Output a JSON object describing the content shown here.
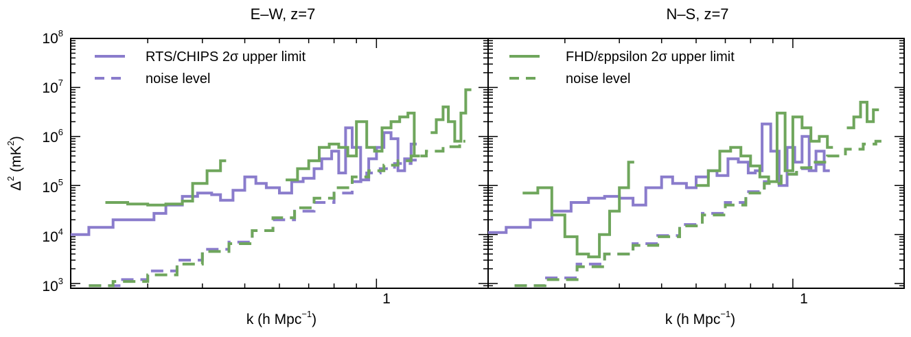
{
  "chart_data": [
    {
      "type": "line",
      "title": "E–W, z=7",
      "xlabel": "k (h Mpc",
      "xlabel_sup": "−1",
      "xlabel_close": ")",
      "ylabel": "Δ",
      "ylabel_sup": "2",
      "ylabel_mid": " (mK",
      "ylabel_sup2": "2",
      "ylabel_close": ")",
      "x_scale": "log",
      "y_scale": "log",
      "xlim": [
        0.2,
        1.8
      ],
      "ylim": [
        800,
        100000000
      ],
      "x_tick_labels": [
        {
          "value": 1,
          "label": "1"
        }
      ],
      "y_tick_labels": [
        {
          "value": 1000,
          "base": "10",
          "exp": "3"
        },
        {
          "value": 10000,
          "base": "10",
          "exp": "4"
        },
        {
          "value": 100000,
          "base": "10",
          "exp": "5"
        },
        {
          "value": 1000000,
          "base": "10",
          "exp": "6"
        },
        {
          "value": 10000000,
          "base": "10",
          "exp": "7"
        },
        {
          "value": 100000000,
          "base": "10",
          "exp": "8"
        }
      ],
      "legend": {
        "placement": "top-left",
        "entries": [
          {
            "label": "RTS/CHIPS 2σ upper limit",
            "style": "solid",
            "color": "#8a7ccc"
          },
          {
            "label": "noise level",
            "style": "dashed",
            "color": "#8a7ccc"
          }
        ]
      },
      "series": [
        {
          "name": "RTS/CHIPS 2σ upper limit",
          "color": "#8a7ccc",
          "style": "solid",
          "points": [
            [
              0.2,
              10000
            ],
            [
              0.22,
              14000
            ],
            [
              0.25,
              20000
            ],
            [
              0.28,
              20000
            ],
            [
              0.31,
              27000
            ],
            [
              0.33,
              40000
            ],
            [
              0.36,
              60000
            ],
            [
              0.39,
              70000
            ],
            [
              0.42,
              65000
            ],
            [
              0.44,
              50000
            ],
            [
              0.47,
              80000
            ],
            [
              0.5,
              150000
            ],
            [
              0.53,
              110000
            ],
            [
              0.56,
              90000
            ],
            [
              0.6,
              70000
            ],
            [
              0.64,
              120000
            ],
            [
              0.68,
              140000
            ],
            [
              0.72,
              220000
            ],
            [
              0.75,
              350000
            ],
            [
              0.79,
              500000
            ],
            [
              0.82,
              180000
            ],
            [
              0.85,
              1500000
            ],
            [
              0.88,
              600000
            ],
            [
              0.92,
              130000
            ],
            [
              0.96,
              350000
            ],
            [
              1.0,
              600000
            ],
            [
              1.04,
              1200000
            ],
            [
              1.08,
              900000
            ],
            [
              1.12,
              200000
            ],
            [
              1.16,
              350000
            ],
            [
              1.2,
              700000
            ]
          ]
        },
        {
          "name": "RTS/CHIPS noise level",
          "color": "#8a7ccc",
          "style": "dashed",
          "points": [
            [
              0.22,
              900
            ],
            [
              0.26,
              1200
            ],
            [
              0.3,
              1800
            ],
            [
              0.35,
              3000
            ],
            [
              0.4,
              5000
            ],
            [
              0.46,
              7000
            ],
            [
              0.52,
              12000
            ],
            [
              0.58,
              20000
            ],
            [
              0.65,
              30000
            ],
            [
              0.72,
              45000
            ],
            [
              0.8,
              70000
            ],
            [
              0.88,
              120000
            ],
            [
              0.95,
              180000
            ],
            [
              1.02,
              220000
            ],
            [
              1.1,
              280000
            ],
            [
              1.2,
              330000
            ]
          ]
        },
        {
          "name": "FHD/εppsilon 2σ upper limit",
          "color": "#6fa65c",
          "style": "solid",
          "points": [
            [
              0.24,
              45000
            ],
            [
              0.27,
              42000
            ],
            [
              0.3,
              40000
            ],
            [
              0.33,
              42000
            ],
            [
              0.36,
              48000
            ],
            [
              0.38,
              110000
            ],
            [
              0.41,
              200000
            ],
            [
              0.44,
              320000
            ]
          ]
        },
        {
          "name": "FHD/εppsilon 2σ upper limit",
          "color": "#6fa65c",
          "style": "solid",
          "points": [
            [
              0.62,
              130000
            ],
            [
              0.66,
              220000
            ],
            [
              0.7,
              320000
            ],
            [
              0.74,
              600000
            ],
            [
              0.78,
              700000
            ],
            [
              0.82,
              600000
            ],
            [
              0.86,
              400000
            ],
            [
              0.9,
              2000000
            ],
            [
              0.95,
              600000
            ],
            [
              0.99,
              500000
            ],
            [
              1.03,
              1500000
            ],
            [
              1.08,
              2000000
            ],
            [
              1.13,
              2500000
            ],
            [
              1.18,
              3000000
            ],
            [
              1.22,
              400000
            ]
          ]
        },
        {
          "name": "FHD/εppsilon 2σ upper limit",
          "color": "#6fa65c",
          "style": "solid",
          "points": [
            [
              1.33,
              1200000
            ],
            [
              1.37,
              2200000
            ],
            [
              1.42,
              4000000
            ],
            [
              1.46,
              2000000
            ],
            [
              1.51,
              800000
            ],
            [
              1.56,
              3000000
            ],
            [
              1.6,
              9000000
            ]
          ]
        },
        {
          "name": "FHD/εppsilon noise level",
          "color": "#6fa65c",
          "style": "dashed",
          "points": [
            [
              0.22,
              900
            ],
            [
              0.25,
              1100
            ],
            [
              0.3,
              1500
            ],
            [
              0.35,
              2500
            ],
            [
              0.4,
              4500
            ],
            [
              0.46,
              6500
            ],
            [
              0.52,
              12000
            ],
            [
              0.58,
              22000
            ],
            [
              0.65,
              35000
            ],
            [
              0.72,
              55000
            ],
            [
              0.8,
              90000
            ],
            [
              0.88,
              150000
            ],
            [
              0.96,
              200000
            ],
            [
              1.04,
              260000
            ],
            [
              1.12,
              320000
            ],
            [
              1.2,
              400000
            ],
            [
              1.3,
              500000
            ],
            [
              1.42,
              620000
            ],
            [
              1.55,
              800000
            ]
          ]
        }
      ]
    },
    {
      "type": "line",
      "title": "N–S, z=7",
      "xlabel": "k (h Mpc",
      "xlabel_sup": "−1",
      "xlabel_close": ")",
      "x_scale": "log",
      "y_scale": "log",
      "xlim": [
        0.2,
        1.8
      ],
      "ylim": [
        800,
        100000000
      ],
      "x_tick_labels": [
        {
          "value": 1,
          "label": "1"
        }
      ],
      "legend": {
        "placement": "top-left",
        "entries": [
          {
            "label": "FHD/εppsilon 2σ upper limit",
            "style": "solid",
            "color": "#6fa65c"
          },
          {
            "label": "noise level",
            "style": "dashed",
            "color": "#6fa65c"
          }
        ]
      },
      "series": [
        {
          "name": "RTS/CHIPS 2σ upper limit",
          "color": "#8a7ccc",
          "style": "solid",
          "points": [
            [
              0.2,
              11000
            ],
            [
              0.22,
              14000
            ],
            [
              0.25,
              20000
            ],
            [
              0.28,
              30000
            ],
            [
              0.31,
              45000
            ],
            [
              0.34,
              55000
            ],
            [
              0.37,
              60000
            ],
            [
              0.4,
              55000
            ],
            [
              0.43,
              40000
            ],
            [
              0.46,
              90000
            ],
            [
              0.5,
              150000
            ],
            [
              0.53,
              110000
            ],
            [
              0.57,
              90000
            ],
            [
              0.6,
              150000
            ],
            [
              0.64,
              200000
            ],
            [
              0.67,
              160000
            ],
            [
              0.71,
              350000
            ],
            [
              0.75,
              300000
            ],
            [
              0.79,
              180000
            ],
            [
              0.82,
              200000
            ],
            [
              0.85,
              1800000
            ],
            [
              0.89,
              500000
            ],
            [
              0.93,
              100000
            ],
            [
              0.97,
              600000
            ],
            [
              1.01,
              300000
            ],
            [
              1.05,
              1000000
            ],
            [
              1.09,
              200000
            ],
            [
              1.13,
              500000
            ],
            [
              1.18,
              200000
            ]
          ]
        },
        {
          "name": "RTS/CHIPS noise level",
          "color": "#8a7ccc",
          "style": "dashed",
          "points": [
            [
              0.23,
              900
            ],
            [
              0.27,
              1300
            ],
            [
              0.32,
              2500
            ],
            [
              0.37,
              4000
            ],
            [
              0.43,
              6500
            ],
            [
              0.49,
              9500
            ],
            [
              0.55,
              16000
            ],
            [
              0.62,
              27000
            ],
            [
              0.7,
              45000
            ],
            [
              0.78,
              75000
            ],
            [
              0.86,
              120000
            ],
            [
              0.94,
              170000
            ],
            [
              1.02,
              220000
            ],
            [
              1.1,
              270000
            ],
            [
              1.18,
              320000
            ]
          ]
        },
        {
          "name": "FHD/εppsilon 2σ upper limit",
          "color": "#6fa65c",
          "style": "solid",
          "points": [
            [
              0.24,
              70000
            ],
            [
              0.26,
              90000
            ],
            [
              0.28,
              25000
            ],
            [
              0.3,
              9000
            ],
            [
              0.32,
              4000
            ],
            [
              0.34,
              3500
            ],
            [
              0.36,
              10000
            ],
            [
              0.38,
              30000
            ],
            [
              0.4,
              90000
            ],
            [
              0.42,
              300000
            ]
          ]
        },
        {
          "name": "FHD/εppsilon 2σ upper limit",
          "color": "#6fa65c",
          "style": "solid",
          "points": [
            [
              0.6,
              100000
            ],
            [
              0.64,
              200000
            ],
            [
              0.68,
              500000
            ],
            [
              0.72,
              600000
            ],
            [
              0.76,
              400000
            ],
            [
              0.8,
              250000
            ],
            [
              0.84,
              150000
            ],
            [
              0.88,
              120000
            ],
            [
              0.92,
              3000000
            ],
            [
              0.96,
              200000
            ],
            [
              1.0,
              2500000
            ],
            [
              1.05,
              1500000
            ],
            [
              1.1,
              800000
            ],
            [
              1.15,
              1000000
            ],
            [
              1.2,
              600000
            ]
          ]
        },
        {
          "name": "FHD/εppsilon 2σ upper limit",
          "color": "#6fa65c",
          "style": "solid",
          "points": [
            [
              1.33,
              1500000
            ],
            [
              1.38,
              2500000
            ],
            [
              1.43,
              5000000
            ],
            [
              1.48,
              2000000
            ],
            [
              1.53,
              3500000
            ]
          ]
        },
        {
          "name": "FHD/εppsilon noise level",
          "color": "#6fa65c",
          "style": "dashed",
          "points": [
            [
              0.23,
              900
            ],
            [
              0.27,
              1200
            ],
            [
              0.32,
              2200
            ],
            [
              0.37,
              4000
            ],
            [
              0.43,
              6000
            ],
            [
              0.49,
              9000
            ],
            [
              0.55,
              15000
            ],
            [
              0.62,
              25000
            ],
            [
              0.7,
              40000
            ],
            [
              0.78,
              70000
            ],
            [
              0.86,
              110000
            ],
            [
              0.94,
              170000
            ],
            [
              1.02,
              230000
            ],
            [
              1.1,
              300000
            ],
            [
              1.2,
              400000
            ],
            [
              1.32,
              550000
            ],
            [
              1.45,
              700000
            ],
            [
              1.55,
              800000
            ]
          ]
        }
      ]
    }
  ]
}
